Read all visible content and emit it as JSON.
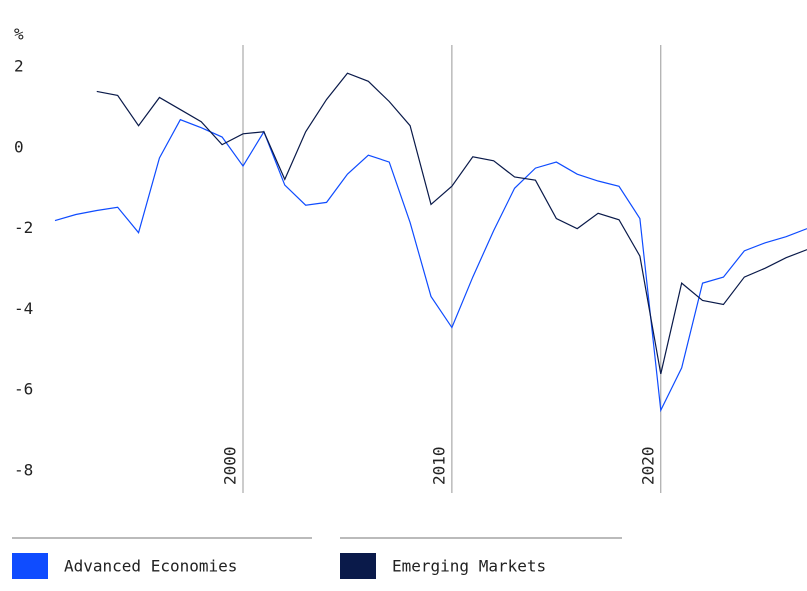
{
  "chart_data": {
    "type": "line",
    "y_label": "%",
    "x": [
      1991,
      1992,
      1993,
      1994,
      1995,
      1996,
      1997,
      1998,
      1999,
      2000,
      2001,
      2002,
      2003,
      2004,
      2005,
      2006,
      2007,
      2008,
      2009,
      2010,
      2011,
      2012,
      2013,
      2014,
      2015,
      2016,
      2017,
      2018,
      2019,
      2020,
      2021,
      2022,
      2023,
      2024,
      2025,
      2026,
      2027
    ],
    "series": [
      {
        "name": "Advanced Economies",
        "color": "#0f4cff",
        "values": [
          -1.8,
          -1.65,
          -1.55,
          -1.47,
          -2.1,
          -0.25,
          0.7,
          0.5,
          0.27,
          -0.45,
          0.4,
          -0.92,
          -1.42,
          -1.35,
          -0.65,
          -0.18,
          -0.35,
          -1.85,
          -3.68,
          -4.45,
          -3.2,
          -2.05,
          -1.0,
          -0.5,
          -0.35,
          -0.65,
          -0.82,
          -0.95,
          -1.75,
          -6.5,
          -5.45,
          -3.35,
          -3.2,
          -2.55,
          -2.35,
          -2.2,
          -2.0
        ]
      },
      {
        "name": "Emerging Markets",
        "color": "#0a1a4a",
        "values": [
          null,
          null,
          1.4,
          1.3,
          0.55,
          1.25,
          0.95,
          0.65,
          0.08,
          0.35,
          0.4,
          -0.78,
          0.4,
          1.2,
          1.85,
          1.65,
          1.15,
          0.55,
          -1.4,
          -0.95,
          -0.22,
          -0.32,
          -0.72,
          -0.8,
          -1.75,
          -2.0,
          -1.62,
          -1.78,
          -2.68,
          -5.6,
          -3.35,
          -3.78,
          -3.88,
          -3.2,
          -2.98,
          -2.72,
          -2.52
        ]
      }
    ],
    "xlim": [
      1991,
      2027
    ],
    "xticks": [
      2000,
      2010,
      2020
    ],
    "ylim": [
      -8.55,
      2.55
    ],
    "yticks": [
      2,
      0,
      -2,
      -4,
      -6,
      -8
    ]
  }
}
